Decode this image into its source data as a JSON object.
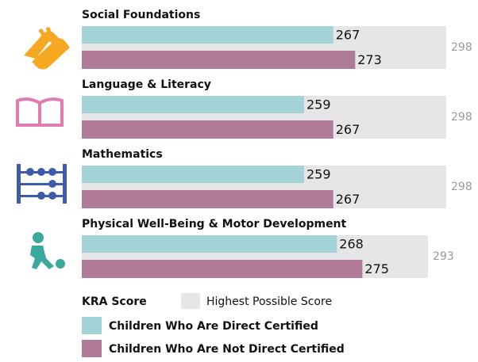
{
  "chart_data": {
    "type": "bar",
    "categories": [
      "Social Foundations",
      "Language & Literacy",
      "Mathematics",
      "Physical Well-Being & Motor Development"
    ],
    "series": [
      {
        "name": "Children Who Are Direct Certified",
        "color": "#a2d3d6",
        "values": [
          267,
          259,
          259,
          268
        ]
      },
      {
        "name": "Children Who Are Not Direct Certified",
        "color": "#b07a99",
        "values": [
          273,
          267,
          267,
          275
        ]
      }
    ],
    "max_series": {
      "name": "Highest Possible Score",
      "color": "#e6e6e6",
      "values": [
        298,
        298,
        298,
        293
      ]
    },
    "legend_title": "KRA Score",
    "xlim": [
      198,
      298
    ]
  }
}
